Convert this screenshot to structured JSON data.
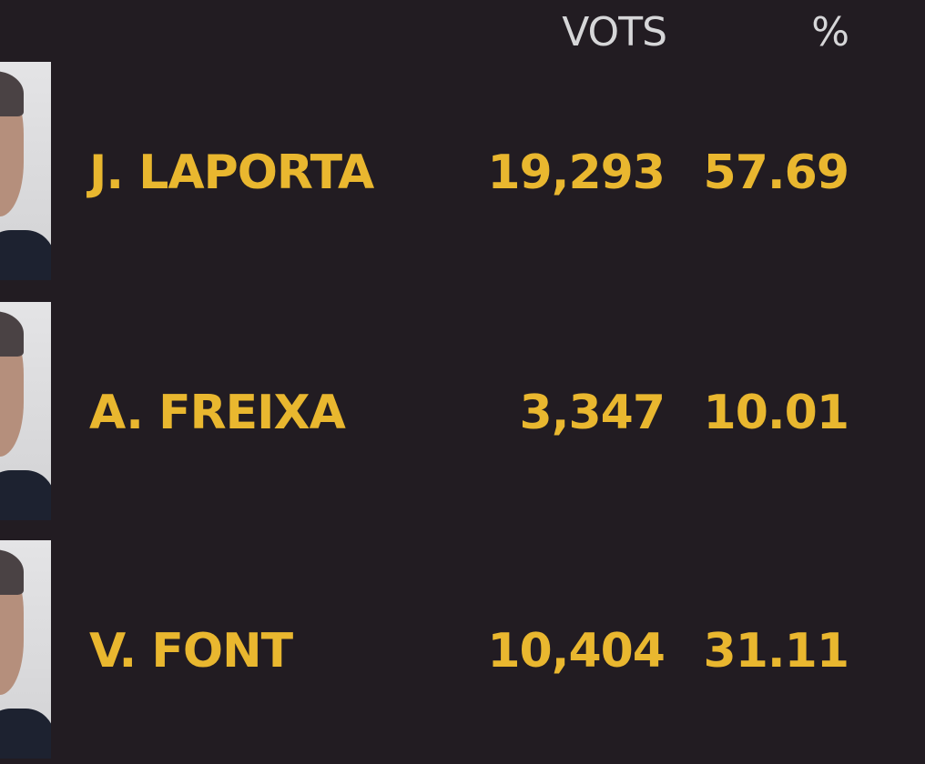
{
  "header": {
    "votes_label": "VOTS",
    "percent_label": "%"
  },
  "colors": {
    "background": "#221c22",
    "accent": "#e9b72f",
    "header_text": "#d6d6d8"
  },
  "candidates": [
    {
      "name": "J. LAPORTA",
      "votes": "19,293",
      "percent": "57.69"
    },
    {
      "name": "A. FREIXA",
      "votes": "3,347",
      "percent": "10.01"
    },
    {
      "name": "V. FONT",
      "votes": "10,404",
      "percent": "31.11"
    }
  ]
}
